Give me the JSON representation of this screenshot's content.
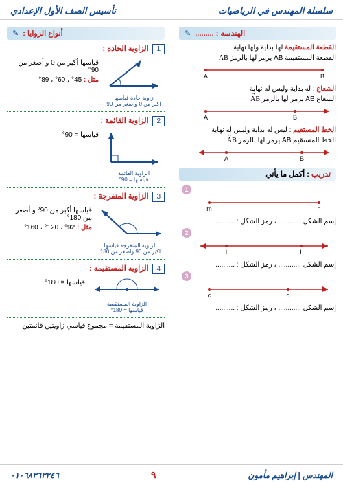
{
  "header": {
    "right": "سلسلة المهندس في الرياضيات",
    "left": "تأسيس الصف الأول الإعدادي"
  },
  "rightCol": {
    "geomHeader": "الهندسة : .........",
    "segment": {
      "term": "القطعة المستقيمة",
      "def": " لها بداية ولها نهاية",
      "line2": "القطعة المستقيمة AB يرمز لها بالرمز ",
      "sym": "AB",
      "ptA": "A",
      "ptB": "B"
    },
    "ray": {
      "term": "الشعاع",
      "def": " : له بداية وليس له نهاية",
      "line2": "الشعاع AB يرمز لها بالرمز ",
      "sym": "AB",
      "ptA": "A",
      "ptB": "B"
    },
    "line": {
      "term": "الخط المستقيم",
      "def": " : ليس له بداية وليس له نهاية",
      "line2": "الخط المستقيم AB يرمز لها بالرمز ",
      "sym": "AB",
      "ptA": "A",
      "ptB": "B"
    },
    "exercise": {
      "label": "تدريب",
      "rest": " : أكمل ما يأتي",
      "q": [
        {
          "n": "1",
          "p1": "m",
          "p2": "n",
          "fill": "إسم الشكل ............ ، رمز الشكل : ..........",
          "type": "seg"
        },
        {
          "n": "2",
          "p1": "l",
          "p2": "h",
          "fill": "إسم الشكل ............ ، رمز الشكل : ..........",
          "type": "line"
        },
        {
          "n": "3",
          "p1": "c",
          "p2": "d",
          "fill": "إسم الشكل ............ ، رمز الشكل : ..........",
          "type": "ray"
        }
      ]
    }
  },
  "leftCol": {
    "header": "أنواع الزوايا :",
    "angles": [
      {
        "num": "1",
        "title": "الزاوية الحادة :",
        "desc": "قياسها أكبر من 0 و أصغر من 90°",
        "ex": "45° ، 60° ، 89°",
        "label1": "زاوية حادة قياسها",
        "label2": "اكبر من 0 واصغر من 90",
        "color": "#1a4d8f"
      },
      {
        "num": "2",
        "title": "الزاوية القائمة :",
        "desc": "قياسها = 90°",
        "ex": "",
        "label1": "الزاوية القائمة",
        "label2": "قياسها = 90°",
        "color": "#1a4d8f"
      },
      {
        "num": "3",
        "title": "الزاوية المنفرجة :",
        "desc": "قياسها أكبر من 90° و أصغر من 180°",
        "ex": "92° ، 120° ، 160°",
        "label1": "الزاوية المنفرجة قياسها",
        "label2": "اكبر من 90 واصغر من 180",
        "color": "#1a4d8f"
      },
      {
        "num": "4",
        "title": "الزاوية المستقيمة :",
        "desc": "قياسها = 180°",
        "ex": "",
        "label1": "الزاوية المستقيمة",
        "label2": "قياسها = 180°",
        "color": "#1a4d8f"
      }
    ],
    "note": "الزاوية المستقيمة = مجموع قياسي زاويتين قائمتين",
    "mthl": "مثل :"
  },
  "footer": {
    "author": "المهندس | إبراهيم مأمون",
    "page": "٩",
    "phone": "٠١٠٦٨٣٦٣٢٤٦"
  },
  "colors": {
    "red": "#c02020",
    "blue": "#1a4d8f",
    "green": "#2a8a4a"
  }
}
